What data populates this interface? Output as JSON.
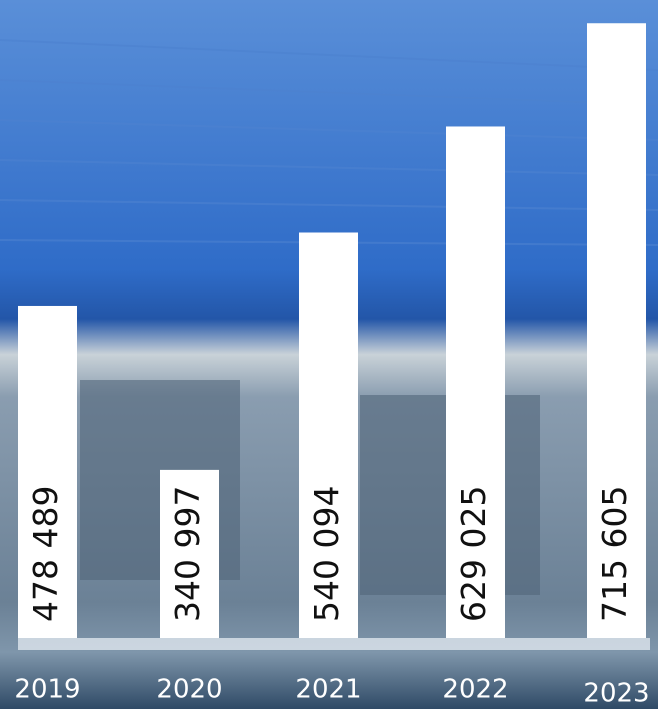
{
  "chart_data": {
    "type": "bar",
    "categories": [
      "2019",
      "2020",
      "2021",
      "2022",
      "2023"
    ],
    "values": [
      478489,
      340997,
      540094,
      629025,
      715605
    ],
    "value_labels": [
      "478 489",
      "340 997",
      "540 094",
      "629 025",
      "715 605"
    ],
    "color": "#ffffff",
    "ylim": [
      200000,
      720000
    ]
  }
}
